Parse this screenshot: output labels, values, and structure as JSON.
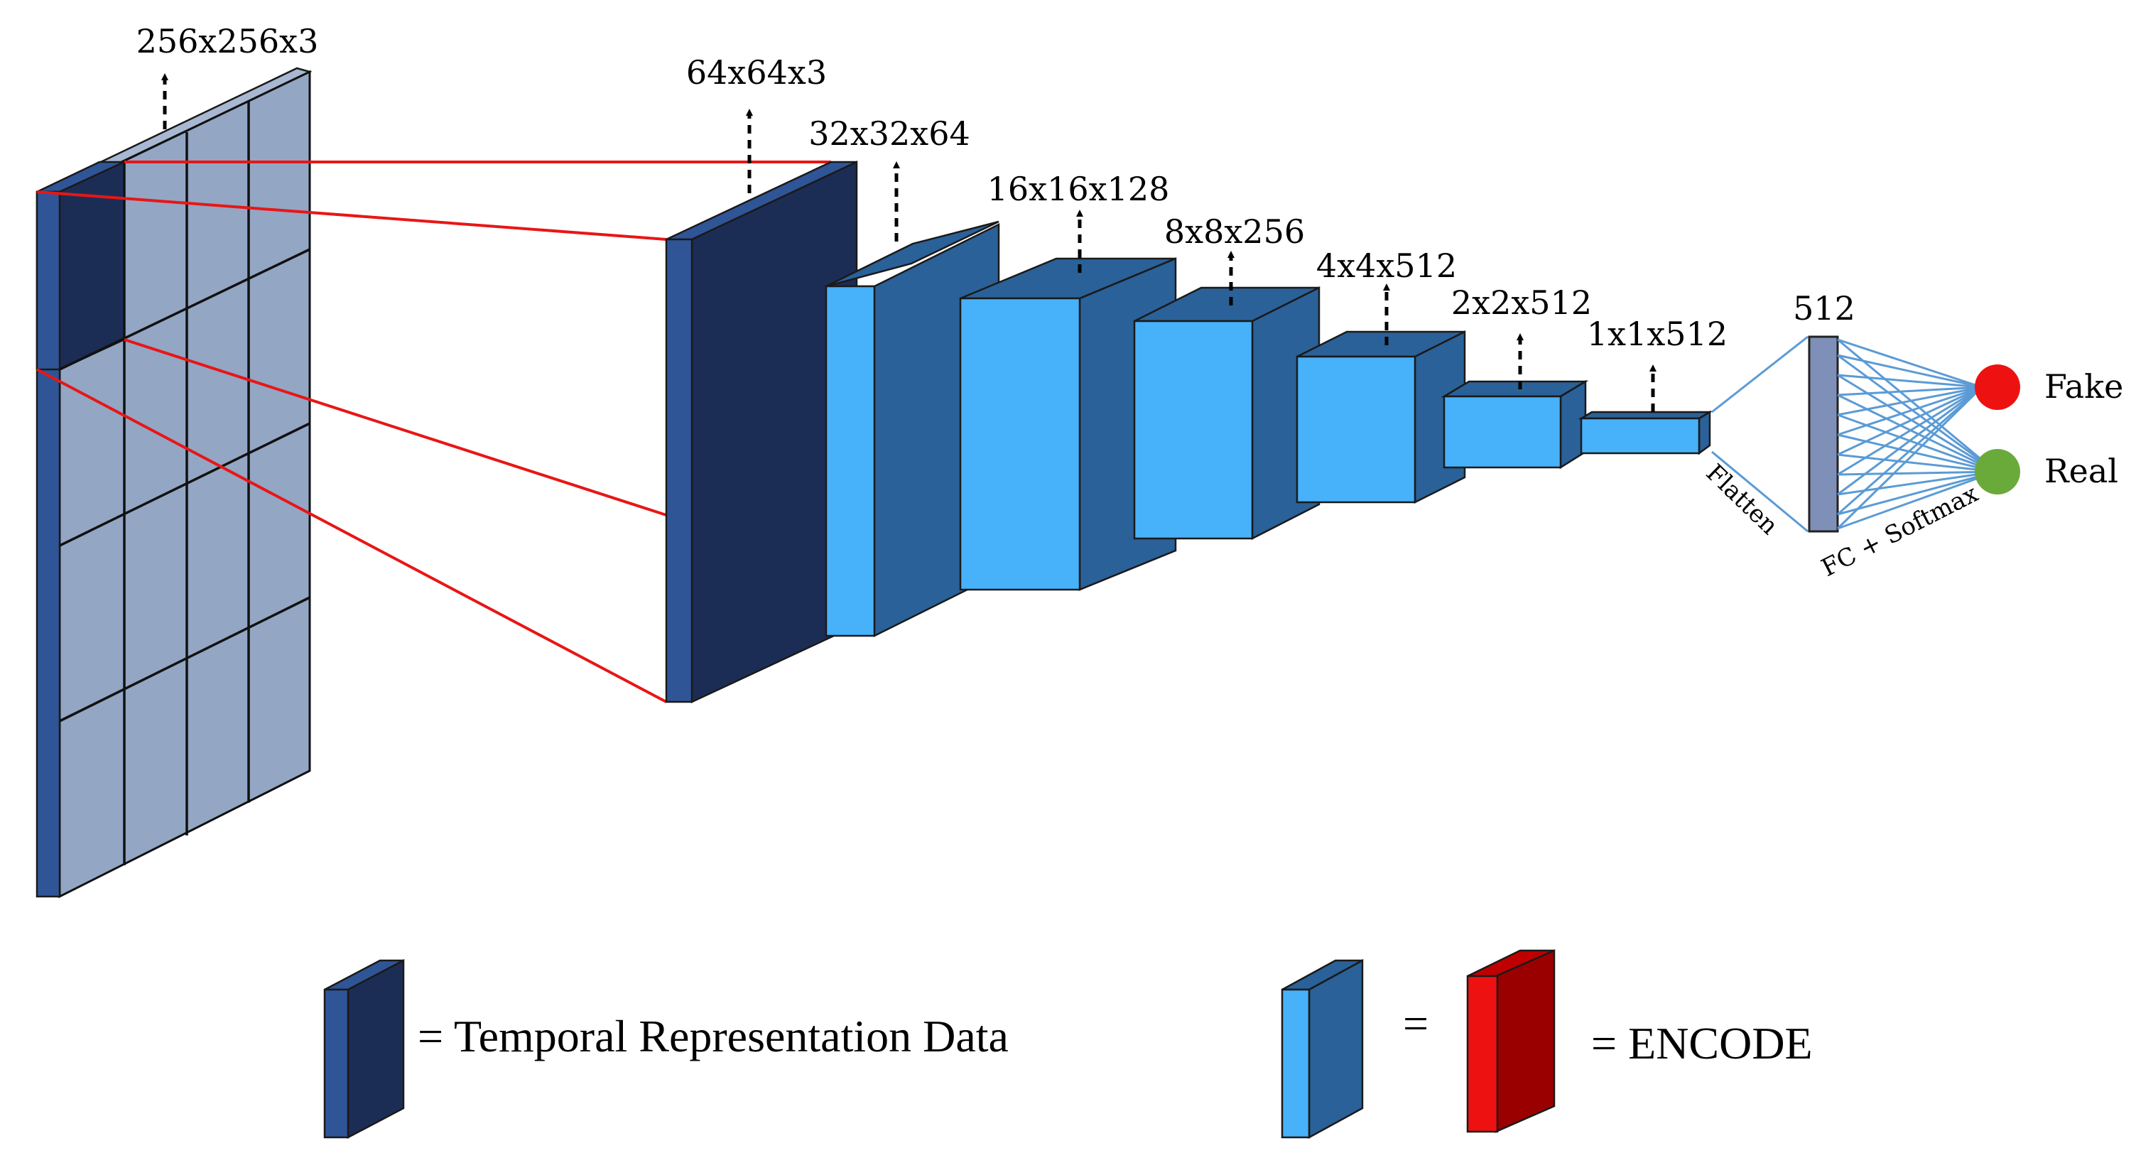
{
  "input_label": "256x256x3",
  "layers": [
    {
      "label": "64x64x3"
    },
    {
      "label": "32x32x64"
    },
    {
      "label": "16x16x128"
    },
    {
      "label": "8x8x256"
    },
    {
      "label": "4x4x512"
    },
    {
      "label": "2x2x512"
    },
    {
      "label": "1x1x512"
    }
  ],
  "dense_label": "512",
  "flatten_label": "Flatten",
  "fc_label": "FC + Softmax",
  "outputs": [
    {
      "label": "Fake",
      "color": "#ee1111"
    },
    {
      "label": "Real",
      "color": "#6aaa3a"
    }
  ],
  "legend": {
    "temporal": "= Temporal Representation Data",
    "equals": "=",
    "encode": "= ENCODE"
  },
  "colors": {
    "dark_front": "#1c2d55",
    "dark_side": "#2f5597",
    "light_front": "#47b1f9",
    "light_side": "#2a6198",
    "grid_panel": "#93a6c4",
    "grid_top": "#a8b8d2",
    "red_front": "#ee1111",
    "red_side": "#9b0000"
  }
}
